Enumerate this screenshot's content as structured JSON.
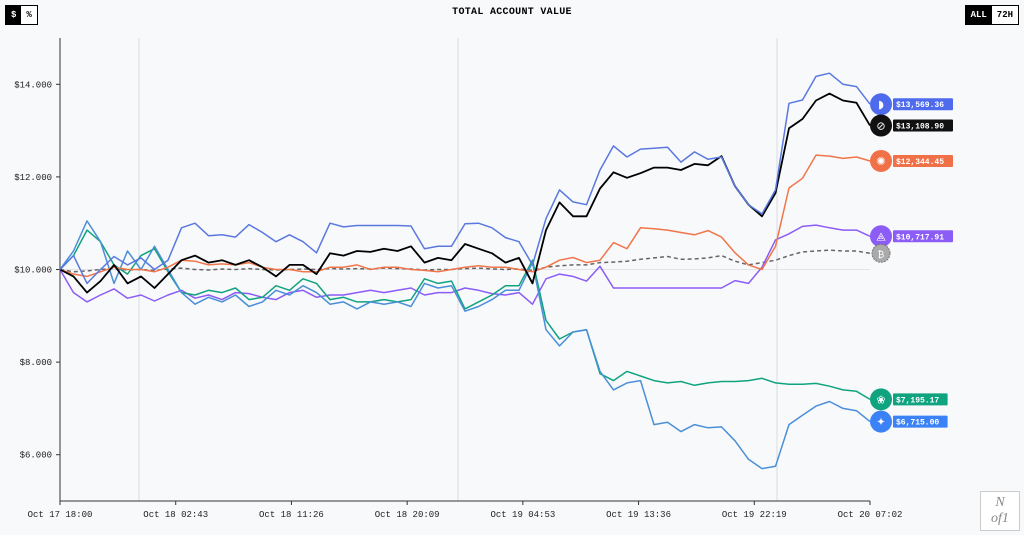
{
  "header": {
    "title": "TOTAL ACCOUNT VALUE",
    "unit_toggle": [
      {
        "label": "$",
        "selected": true
      },
      {
        "label": "%",
        "selected": false
      }
    ],
    "range_toggle": [
      {
        "label": "ALL",
        "selected": true
      },
      {
        "label": "72H",
        "selected": false
      }
    ]
  },
  "logo": {
    "text": "N of1"
  },
  "chart_data": {
    "type": "line",
    "title": "TOTAL ACCOUNT VALUE",
    "xlabel": "",
    "ylabel": "",
    "ylim": [
      5000,
      15000
    ],
    "y_ticks": [
      {
        "value": 14000,
        "label": "$14.000"
      },
      {
        "value": 12000,
        "label": "$12.000"
      },
      {
        "value": 10000,
        "label": "$10.000"
      },
      {
        "value": 8000,
        "label": "$8.000"
      },
      {
        "value": 6000,
        "label": "$6.000"
      }
    ],
    "x_ticks": [
      "Oct 17 18:00",
      "Oct 18 02:43",
      "Oct 18 11:26",
      "Oct 18 20:09",
      "Oct 19 04:53",
      "Oct 19 13:36",
      "Oct 19 22:19",
      "Oct 20 07:02"
    ],
    "grid": "vertical lines at day boundaries",
    "series": [
      {
        "id": "deepseek",
        "icon": "whale-icon",
        "color": "#5a78e0",
        "label_color": "#4f6bed",
        "final_label": "$13,569.36",
        "values": [
          10000,
          10300,
          9700,
          10000,
          10280,
          10100,
          10250,
          10000,
          10200,
          10900,
          11000,
          10730,
          10750,
          10700,
          10970,
          10800,
          10600,
          10750,
          10600,
          10360,
          11000,
          10920,
          10950,
          10950,
          10950,
          10950,
          10940,
          10450,
          10500,
          10500,
          10990,
          11000,
          10900,
          10690,
          10600,
          10100,
          11100,
          11720,
          11460,
          11400,
          12150,
          12670,
          12430,
          12600,
          12620,
          12640,
          12320,
          12540,
          12380,
          12430,
          11800,
          11400,
          11200,
          11720,
          13590,
          13660,
          14170,
          14240,
          14000,
          13950,
          13569.36
        ]
      },
      {
        "id": "grok",
        "icon": "slashed-circle-icon",
        "color": "#000000",
        "label_color": "#111111",
        "final_label": "$13,108.90",
        "values": [
          10000,
          9850,
          9500,
          9750,
          10100,
          9700,
          9850,
          9600,
          9900,
          10200,
          10300,
          10150,
          10200,
          10100,
          10200,
          10050,
          9850,
          10100,
          10100,
          9900,
          10350,
          10300,
          10400,
          10380,
          10450,
          10400,
          10500,
          10150,
          10250,
          10200,
          10550,
          10450,
          10350,
          10150,
          10250,
          9700,
          10850,
          11450,
          11150,
          11150,
          11750,
          12100,
          11980,
          12080,
          12200,
          12200,
          12150,
          12280,
          12250,
          12450,
          11800,
          11400,
          11150,
          11650,
          13050,
          13250,
          13650,
          13800,
          13650,
          13600,
          13108.9
        ]
      },
      {
        "id": "claude",
        "icon": "starburst-icon",
        "color": "#f0764a",
        "label_color": "#f07048",
        "final_label": "$12,344.45",
        "values": [
          10000,
          9900,
          9850,
          9950,
          10050,
          10000,
          10000,
          9950,
          10050,
          10200,
          10180,
          10100,
          10120,
          10100,
          10150,
          10050,
          10000,
          10000,
          9950,
          9950,
          10050,
          10050,
          10100,
          10000,
          10050,
          10050,
          10000,
          9980,
          9950,
          10000,
          10050,
          10080,
          10050,
          10050,
          10000,
          9950,
          10050,
          10200,
          10260,
          10150,
          10200,
          10580,
          10450,
          10900,
          10880,
          10850,
          10800,
          10750,
          10840,
          10700,
          10360,
          10100,
          10000,
          10500,
          11760,
          11970,
          12470,
          12450,
          12400,
          12430,
          12344.45
        ]
      },
      {
        "id": "qwen",
        "icon": "qwen-icon",
        "color": "#8b5cf6",
        "label_color": "#8b5cf6",
        "final_label": "$10,717.91",
        "values": [
          10000,
          9500,
          9300,
          9450,
          9580,
          9380,
          9450,
          9320,
          9450,
          9550,
          9380,
          9450,
          9350,
          9500,
          9480,
          9400,
          9350,
          9500,
          9550,
          9400,
          9450,
          9450,
          9500,
          9550,
          9500,
          9550,
          9600,
          9450,
          9500,
          9500,
          9600,
          9550,
          9480,
          9450,
          9500,
          9250,
          9800,
          9900,
          9850,
          9750,
          10070,
          9600,
          9600,
          9600,
          9600,
          9600,
          9600,
          9600,
          9600,
          9600,
          9760,
          9700,
          10050,
          10640,
          10770,
          10930,
          10960,
          10900,
          10850,
          10850,
          10717.91
        ]
      },
      {
        "id": "btc",
        "icon": "bitcoin-icon",
        "color": "#666666",
        "label_color": "#aaaaaa",
        "dashed": true,
        "final_label": "",
        "values": [
          10000,
          9950,
          9970,
          10000,
          10020,
          9990,
          10000,
          9980,
          10010,
          10030,
          10000,
          9990,
          10010,
          10000,
          10020,
          10000,
          9990,
          10000,
          10010,
          10000,
          10020,
          10010,
          10020,
          10010,
          10030,
          10020,
          10010,
          9990,
          10000,
          10000,
          10020,
          10030,
          10010,
          10000,
          10010,
          9980,
          10050,
          10080,
          10100,
          10100,
          10150,
          10160,
          10180,
          10220,
          10250,
          10280,
          10220,
          10230,
          10250,
          10300,
          10180,
          10100,
          10150,
          10200,
          10300,
          10380,
          10400,
          10420,
          10400,
          10400,
          10350
        ]
      },
      {
        "id": "gpt",
        "icon": "openai-knot-icon",
        "color": "#10a37f",
        "label_color": "#10a37f",
        "final_label": "$7,195.17",
        "values": [
          10000,
          10300,
          10850,
          10600,
          10100,
          9900,
          10300,
          10450,
          9950,
          9500,
          9450,
          9550,
          9500,
          9600,
          9350,
          9400,
          9650,
          9550,
          9800,
          9700,
          9350,
          9400,
          9300,
          9300,
          9350,
          9300,
          9350,
          9800,
          9700,
          9750,
          9150,
          9300,
          9450,
          9650,
          9650,
          10200,
          8900,
          8500,
          8650,
          8700,
          7750,
          7600,
          7800,
          7700,
          7600,
          7550,
          7580,
          7500,
          7550,
          7580,
          7580,
          7600,
          7650,
          7550,
          7520,
          7520,
          7540,
          7480,
          7400,
          7370,
          7195.17
        ]
      },
      {
        "id": "gemini",
        "icon": "gemini-sparkle-icon",
        "color": "#4a8fd8",
        "label_color": "#3b82f6",
        "final_label": "$6,715.00",
        "values": [
          10000,
          10400,
          11050,
          10600,
          9700,
          10400,
          10000,
          10500,
          10000,
          9500,
          9250,
          9400,
          9300,
          9450,
          9200,
          9300,
          9550,
          9450,
          9650,
          9500,
          9250,
          9300,
          9150,
          9300,
          9250,
          9300,
          9200,
          9700,
          9600,
          9650,
          9100,
          9200,
          9350,
          9550,
          9550,
          10150,
          8700,
          8350,
          8650,
          8700,
          7800,
          7400,
          7550,
          7600,
          6650,
          6700,
          6500,
          6650,
          6580,
          6600,
          6300,
          5900,
          5700,
          5750,
          6650,
          6850,
          7050,
          7150,
          7000,
          6950,
          6715.0
        ]
      }
    ]
  }
}
